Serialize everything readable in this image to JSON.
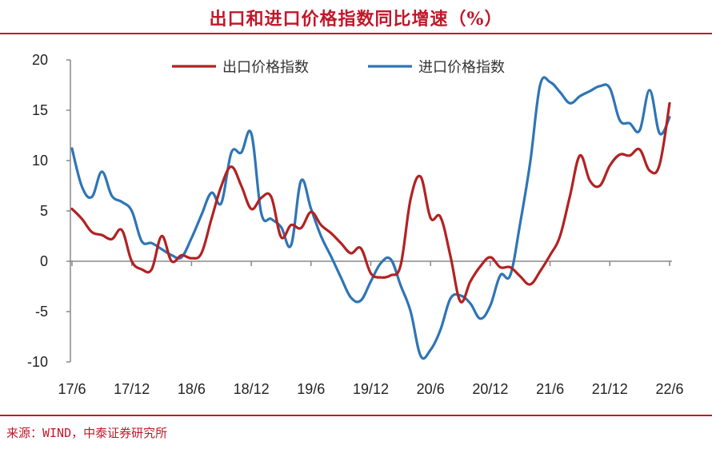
{
  "header": {
    "title": "出口和进口价格指数同比增速（%）"
  },
  "footer": {
    "source": "来源：WIND，中泰证券研究所"
  },
  "chart_data": {
    "type": "line",
    "title": "出口和进口价格指数同比增速（%）",
    "xlabel": "",
    "ylabel": "",
    "ylim": [
      -10,
      20
    ],
    "yticks": [
      -10,
      -5,
      0,
      5,
      10,
      15,
      20
    ],
    "x_tick_labels": [
      "17/6",
      "17/12",
      "18/6",
      "18/12",
      "19/6",
      "19/12",
      "20/6",
      "20/12",
      "21/6",
      "21/12",
      "22/6"
    ],
    "x": [
      "17/6",
      "17/7",
      "17/8",
      "17/9",
      "17/10",
      "17/11",
      "17/12",
      "18/1",
      "18/2",
      "18/3",
      "18/4",
      "18/5",
      "18/6",
      "18/7",
      "18/8",
      "18/9",
      "18/10",
      "18/11",
      "18/12",
      "19/1",
      "19/2",
      "19/3",
      "19/4",
      "19/5",
      "19/6",
      "19/7",
      "19/8",
      "19/9",
      "19/10",
      "19/11",
      "19/12",
      "20/1",
      "20/2",
      "20/3",
      "20/4",
      "20/5",
      "20/6",
      "20/7",
      "20/8",
      "20/9",
      "20/10",
      "20/11",
      "20/12",
      "21/1",
      "21/2",
      "21/3",
      "21/4",
      "21/5",
      "21/6",
      "21/7",
      "21/8",
      "21/9",
      "21/10",
      "21/11",
      "21/12",
      "22/1",
      "22/2",
      "22/3",
      "22/4",
      "22/5",
      "22/6",
      "22/7"
    ],
    "legend_position": "top",
    "grid": false,
    "series": [
      {
        "name": "出口价格指数",
        "color": "#b22222",
        "values": [
          5.2,
          4.2,
          2.9,
          2.6,
          2.2,
          3.1,
          0.0,
          -0.8,
          -0.8,
          2.5,
          0.0,
          0.6,
          0.3,
          0.8,
          4.2,
          7.5,
          9.4,
          7.5,
          5.2,
          6.3,
          6.4,
          2.4,
          3.6,
          3.3,
          4.9,
          3.6,
          2.8,
          1.8,
          0.8,
          1.3,
          -1.2,
          -1.6,
          -1.4,
          -0.4,
          6.2,
          8.4,
          4.3,
          4.4,
          0.5,
          -4.0,
          -2.0,
          -0.5,
          0.4,
          -0.6,
          -0.6,
          -1.5,
          -2.3,
          -1.0,
          0.6,
          2.5,
          6.5,
          10.5,
          8.0,
          7.5,
          9.5,
          10.6,
          10.5,
          11.1,
          9.0,
          9.6,
          15.7,
          null
        ]
      },
      {
        "name": "进口价格指数",
        "color": "#2e75b6",
        "values": [
          11.2,
          7.4,
          6.4,
          8.9,
          6.5,
          5.9,
          5.0,
          2.0,
          1.8,
          1.2,
          0.6,
          0.4,
          2.3,
          4.6,
          6.8,
          5.8,
          10.8,
          10.8,
          12.7,
          4.8,
          4.2,
          3.4,
          1.6,
          8.0,
          5.2,
          2.5,
          0.5,
          -1.6,
          -3.6,
          -3.9,
          -2.0,
          -0.2,
          0.2,
          -2.4,
          -5.0,
          -9.4,
          -8.8,
          -6.8,
          -3.7,
          -3.4,
          -4.2,
          -5.7,
          -4.4,
          -1.4,
          -1.4,
          3.8,
          9.8,
          17.5,
          17.8,
          16.8,
          15.7,
          16.4,
          16.9,
          17.4,
          17.2,
          14.0,
          13.7,
          13.0,
          17.0,
          12.7,
          14.3,
          null
        ]
      }
    ]
  }
}
